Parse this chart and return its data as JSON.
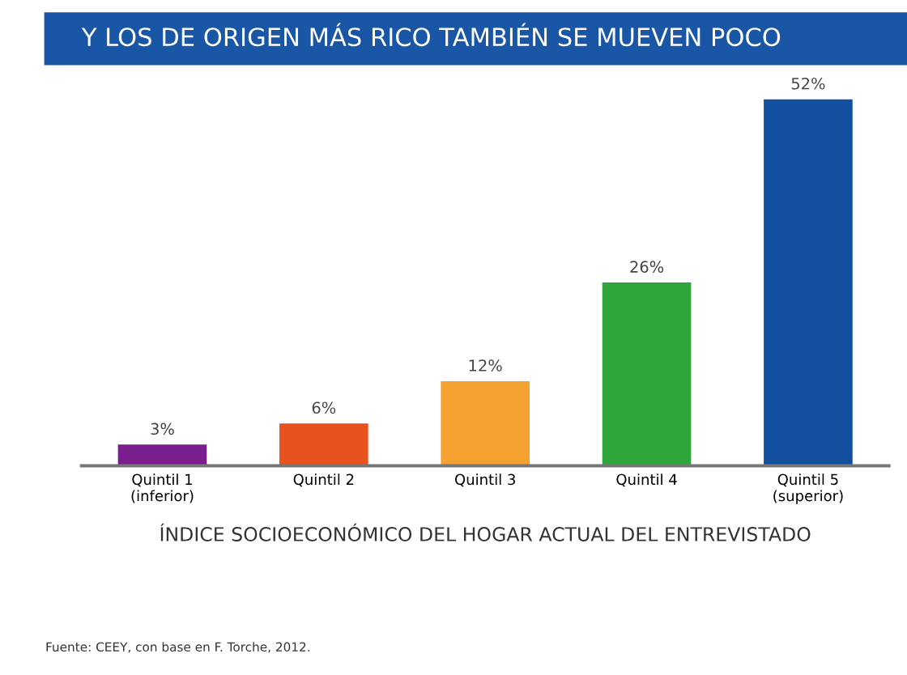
{
  "chart_data": {
    "type": "bar",
    "title": "Y LOS DE ORIGEN MÁS RICO TAMBIÉN SE MUEVEN POCO",
    "xlabel": "ÍNDICE SOCIOECONÓMICO DEL HOGAR ACTUAL DEL ENTREVISTADO",
    "categories": [
      "Quintil 1\n(inferior)",
      "Quintil 2",
      "Quintil 3",
      "Quintil 4",
      "Quintil 5\n(superior)"
    ],
    "values": [
      3,
      6,
      12,
      26,
      52
    ],
    "colors": [
      "#7a1e8e",
      "#e8521f",
      "#f5a231",
      "#2ea63a",
      "#12509f"
    ],
    "value_labels": [
      "3%",
      "6%",
      "12%",
      "26%",
      "52%"
    ],
    "annotations": [
      "Fuente: CEEY, con base en F. Torche, 2012."
    ],
    "grid": false,
    "legend": false
  }
}
